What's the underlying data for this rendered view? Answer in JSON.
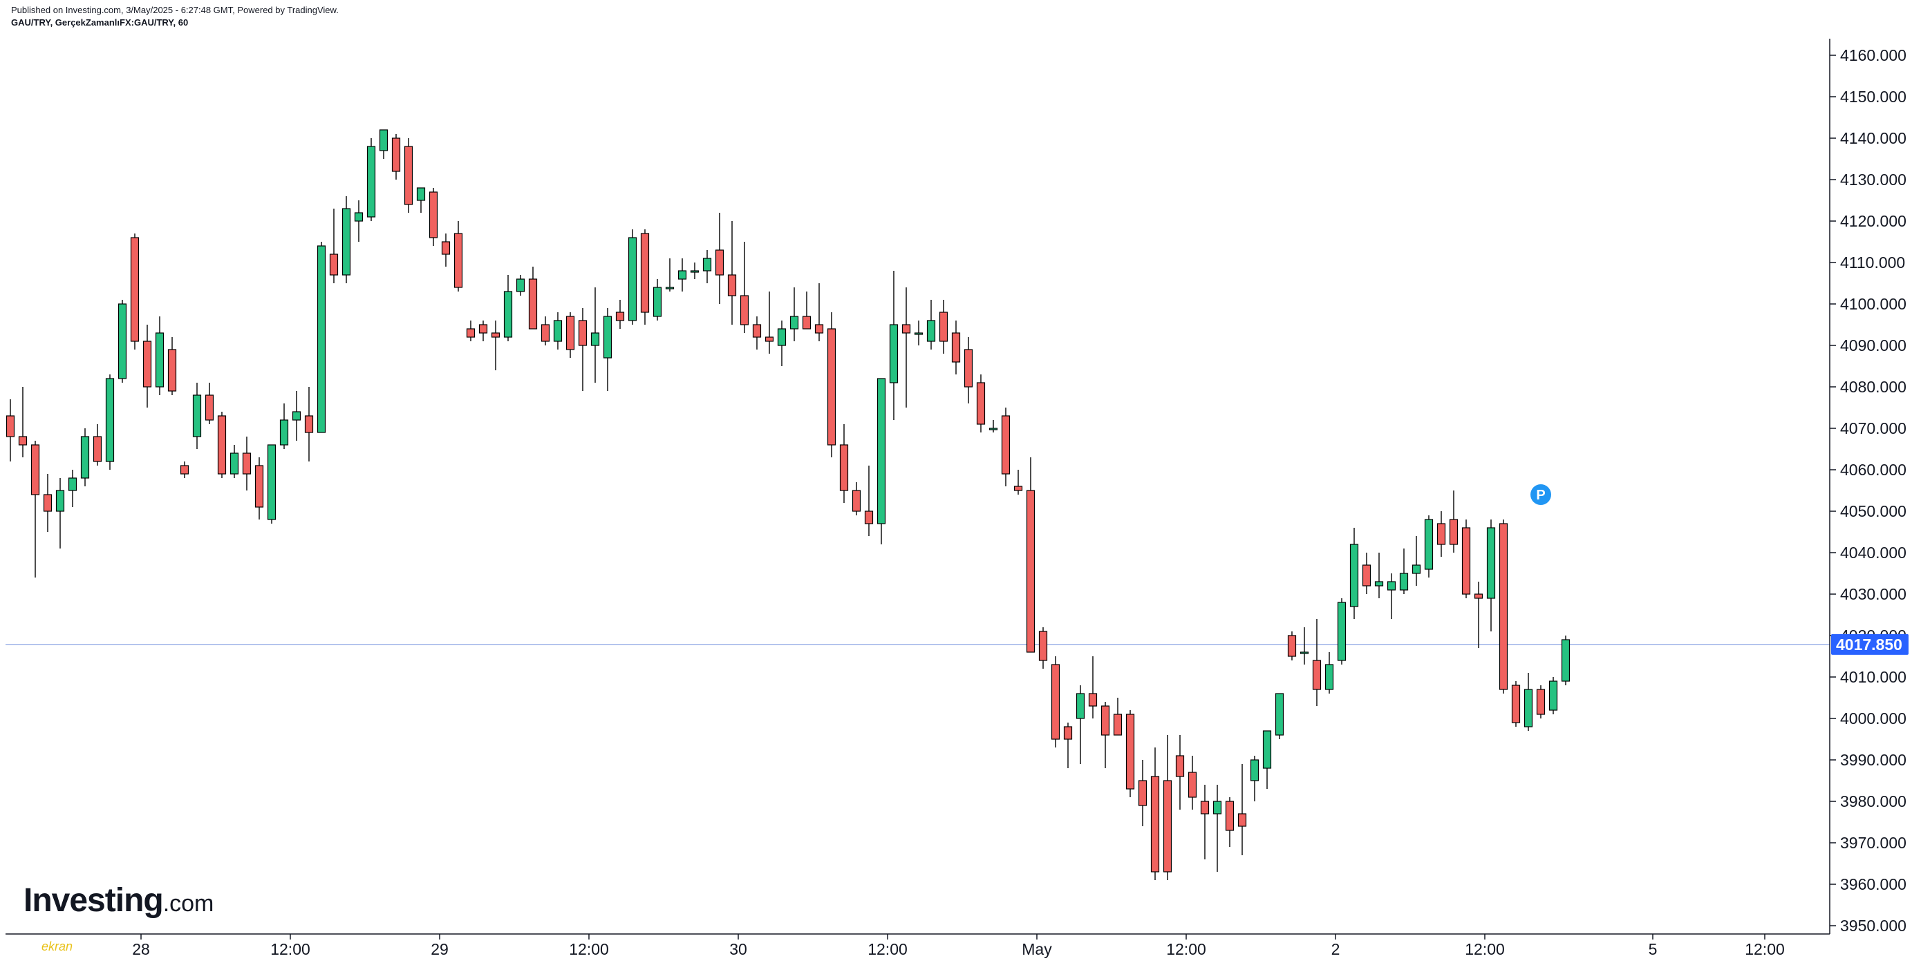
{
  "header": {
    "published": "Published on Investing.com, 3/May/2025 - 6:27:48 GMT, Powered by TradingView.",
    "symbol": "GAU/TRY, GerçekZamanlıFX:GAU/TRY, 60"
  },
  "logo": {
    "brand": "Investing",
    "suffix": ".com"
  },
  "corner_mark": "ekran",
  "chart_data": {
    "type": "candlestick",
    "symbol": "GAU/TRY",
    "interval": "60",
    "ylim": [
      3950,
      4160
    ],
    "y_ticks": [
      "4160.000",
      "4150.000",
      "4140.000",
      "4130.000",
      "4120.000",
      "4110.000",
      "4100.000",
      "4090.000",
      "4080.000",
      "4070.000",
      "4060.000",
      "4050.000",
      "4040.000",
      "4030.000",
      "4020.000",
      "4010.000",
      "4000.000",
      "3990.000",
      "3980.000",
      "3970.000",
      "3960.000",
      "3950.000"
    ],
    "x_labels": [
      {
        "label": "28",
        "index": 10.5
      },
      {
        "label": "12:00",
        "index": 22.5
      },
      {
        "label": "29",
        "index": 34.5
      },
      {
        "label": "12:00",
        "index": 46.5
      },
      {
        "label": "30",
        "index": 58.5
      },
      {
        "label": "12:00",
        "index": 70.5
      },
      {
        "label": "May",
        "index": 82.5
      },
      {
        "label": "12:00",
        "index": 94.5
      },
      {
        "label": "2",
        "index": 106.5
      },
      {
        "label": "12:00",
        "index": 118.5
      },
      {
        "label": "5",
        "index": 132
      },
      {
        "label": "12:00",
        "index": 141
      }
    ],
    "last_price": 4017.85,
    "last_price_label": "4017.850",
    "marker": {
      "label": "P",
      "index": 123,
      "price": 4054
    },
    "up_color": "#089981",
    "up_fill": "#26c281",
    "down_color": "#f23645",
    "down_fill": "#f0625f",
    "last_line_color": "#9db2e8",
    "last_badge_color": "#2962ff",
    "grid": false,
    "candles": [
      [
        4073,
        4077,
        4062,
        4068
      ],
      [
        4068,
        4080,
        4063,
        4066
      ],
      [
        4066,
        4067,
        4034,
        4054
      ],
      [
        4054,
        4059,
        4045,
        4050
      ],
      [
        4050,
        4058,
        4041,
        4055
      ],
      [
        4055,
        4060,
        4051,
        4058
      ],
      [
        4058,
        4070,
        4056,
        4068
      ],
      [
        4068,
        4071,
        4061,
        4062
      ],
      [
        4062,
        4083,
        4060,
        4082
      ],
      [
        4082,
        4101,
        4081,
        4100
      ],
      [
        4116,
        4117,
        4089,
        4091
      ],
      [
        4091,
        4095,
        4075,
        4080
      ],
      [
        4080,
        4097,
        4078,
        4093
      ],
      [
        4089,
        4092,
        4078,
        4079
      ],
      [
        4061,
        4062,
        4058,
        4059
      ],
      [
        4068,
        4081,
        4065,
        4078
      ],
      [
        4078,
        4081,
        4071,
        4072
      ],
      [
        4073,
        4074,
        4058,
        4059
      ],
      [
        4059,
        4066,
        4058,
        4064
      ],
      [
        4064,
        4068,
        4055,
        4059
      ],
      [
        4061,
        4063,
        4048,
        4051
      ],
      [
        4048,
        4066,
        4047,
        4066
      ],
      [
        4066,
        4076,
        4065,
        4072
      ],
      [
        4072,
        4079,
        4067,
        4074
      ],
      [
        4073,
        4080,
        4062,
        4069
      ],
      [
        4069,
        4115,
        4069,
        4114
      ],
      [
        4112,
        4123,
        4105,
        4107
      ],
      [
        4107,
        4126,
        4105,
        4123
      ],
      [
        4120,
        4125,
        4115,
        4122
      ],
      [
        4121,
        4140,
        4120,
        4138
      ],
      [
        4137,
        4142,
        4135,
        4142
      ],
      [
        4140,
        4141,
        4130,
        4132
      ],
      [
        4138,
        4140,
        4122,
        4124
      ],
      [
        4125,
        4128,
        4122,
        4128
      ],
      [
        4127,
        4128,
        4114,
        4116
      ],
      [
        4115,
        4117,
        4109,
        4112
      ],
      [
        4117,
        4120,
        4103,
        4104
      ],
      [
        4094,
        4096,
        4091,
        4092
      ],
      [
        4095,
        4096,
        4091,
        4093
      ],
      [
        4093,
        4096,
        4084,
        4092
      ],
      [
        4092,
        4107,
        4091,
        4103
      ],
      [
        4103,
        4107,
        4102,
        4106
      ],
      [
        4106,
        4109,
        4094,
        4094
      ],
      [
        4095,
        4097,
        4090,
        4091
      ],
      [
        4091,
        4098,
        4089,
        4096
      ],
      [
        4097,
        4098,
        4087,
        4089
      ],
      [
        4096,
        4099,
        4079,
        4090
      ],
      [
        4090,
        4104,
        4081,
        4093
      ],
      [
        4087,
        4099,
        4079,
        4097
      ],
      [
        4098,
        4101,
        4094,
        4096
      ],
      [
        4096,
        4118,
        4095,
        4116
      ],
      [
        4117,
        4118,
        4095,
        4098
      ],
      [
        4097,
        4106,
        4096,
        4104
      ],
      [
        4104,
        4111,
        4103,
        4104
      ],
      [
        4106,
        4111,
        4103,
        4108
      ],
      [
        4108,
        4110,
        4106,
        4108
      ],
      [
        4108,
        4113,
        4105,
        4111
      ],
      [
        4113,
        4122,
        4100,
        4107
      ],
      [
        4107,
        4120,
        4095,
        4102
      ],
      [
        4102,
        4115,
        4093,
        4095
      ],
      [
        4095,
        4097,
        4089,
        4092
      ],
      [
        4092,
        4103,
        4088,
        4091
      ],
      [
        4090,
        4096,
        4085,
        4094
      ],
      [
        4094,
        4104,
        4091,
        4097
      ],
      [
        4097,
        4103,
        4094,
        4094
      ],
      [
        4095,
        4105,
        4091,
        4093
      ],
      [
        4094,
        4098,
        4063,
        4066
      ],
      [
        4066,
        4071,
        4052,
        4055
      ],
      [
        4055,
        4057,
        4049,
        4050
      ],
      [
        4050,
        4061,
        4044,
        4047
      ],
      [
        4047,
        4082,
        4042,
        4082
      ],
      [
        4081,
        4108,
        4072,
        4095
      ],
      [
        4095,
        4104,
        4075,
        4093
      ],
      [
        4093,
        4096,
        4090,
        4093
      ],
      [
        4091,
        4101,
        4089,
        4096
      ],
      [
        4098,
        4101,
        4088,
        4091
      ],
      [
        4093,
        4096,
        4083,
        4086
      ],
      [
        4089,
        4092,
        4076,
        4080
      ],
      [
        4081,
        4083,
        4069,
        4071
      ],
      [
        4070,
        4072,
        4069,
        4070
      ],
      [
        4073,
        4075,
        4056,
        4059
      ],
      [
        4056,
        4060,
        4054,
        4055
      ],
      [
        4055,
        4063,
        4016,
        4016
      ],
      [
        4021,
        4022,
        4012,
        4014
      ],
      [
        4013,
        4015,
        3993,
        3995
      ],
      [
        3998,
        3999,
        3988,
        3995
      ],
      [
        4000,
        4008,
        3989,
        4006
      ],
      [
        4006,
        4015,
        4000,
        4003
      ],
      [
        4003,
        4004,
        3988,
        3996
      ],
      [
        4001,
        4005,
        3996,
        3996
      ],
      [
        4001,
        4002,
        3981,
        3983
      ],
      [
        3985,
        3990,
        3974,
        3979
      ],
      [
        3986,
        3993,
        3961,
        3963
      ],
      [
        3985,
        3996,
        3961,
        3963
      ],
      [
        3991,
        3996,
        3978,
        3986
      ],
      [
        3987,
        3991,
        3978,
        3981
      ],
      [
        3980,
        3984,
        3966,
        3977
      ],
      [
        3977,
        3984,
        3963,
        3980
      ],
      [
        3980,
        3981,
        3969,
        3973
      ],
      [
        3977,
        3989,
        3967,
        3974
      ],
      [
        3985,
        3991,
        3980,
        3990
      ],
      [
        3988,
        3995,
        3983,
        3997
      ],
      [
        3996,
        4006,
        3995,
        4006
      ],
      [
        4020,
        4021,
        4014,
        4015
      ],
      [
        4016,
        4022,
        4013,
        4016
      ],
      [
        4014,
        4024,
        4003,
        4007
      ],
      [
        4007,
        4016,
        4006,
        4013
      ],
      [
        4014,
        4029,
        4013,
        4028
      ],
      [
        4027,
        4046,
        4024,
        4042
      ],
      [
        4037,
        4040,
        4030,
        4032
      ],
      [
        4032,
        4040,
        4029,
        4033
      ],
      [
        4031,
        4035,
        4024,
        4033
      ],
      [
        4031,
        4041,
        4030,
        4035
      ],
      [
        4035,
        4044,
        4032,
        4037
      ],
      [
        4036,
        4049,
        4034,
        4048
      ],
      [
        4047,
        4050,
        4039,
        4042
      ],
      [
        4048,
        4055,
        4040,
        4042
      ],
      [
        4046,
        4048,
        4029,
        4030
      ],
      [
        4030,
        4033,
        4017,
        4029
      ],
      [
        4029,
        4048,
        4021,
        4046
      ],
      [
        4047,
        4048,
        4006,
        4007
      ],
      [
        4008,
        4009,
        3998,
        3999
      ],
      [
        3998,
        4011,
        3997,
        4007
      ],
      [
        4007,
        4008,
        4000,
        4001
      ],
      [
        4002,
        4010,
        4001,
        4009
      ],
      [
        4009,
        4020,
        4008,
        4019
      ]
    ]
  }
}
